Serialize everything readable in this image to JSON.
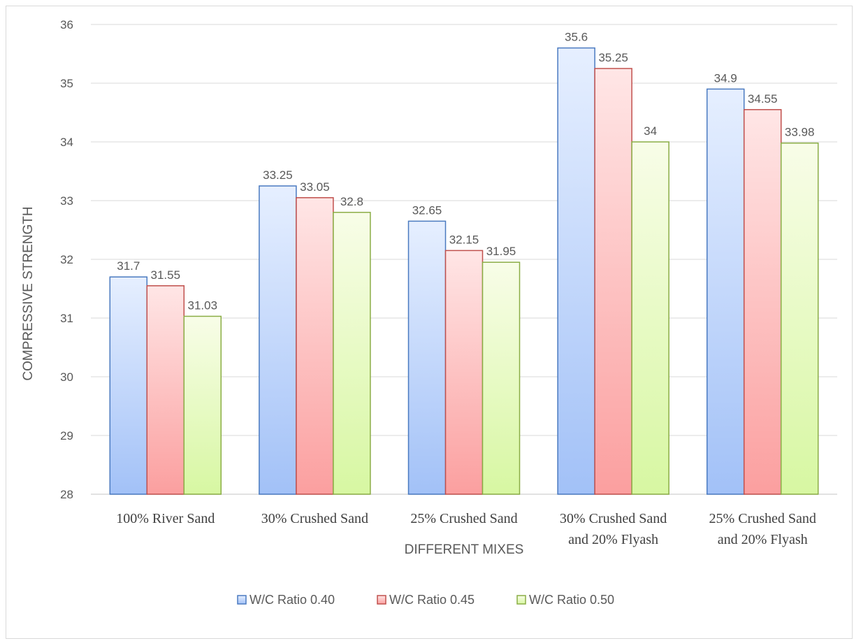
{
  "chart_data": {
    "type": "bar",
    "title": "",
    "xlabel": "DIFFERENT MIXES",
    "ylabel": "COMPRESSIVE STRENGTH",
    "ylim": [
      28,
      36
    ],
    "yticks": [
      "28",
      "29",
      "30",
      "31",
      "32",
      "33",
      "34",
      "35",
      "36"
    ],
    "grid": true,
    "legend_position": "bottom",
    "categories": [
      [
        "100% River Sand"
      ],
      [
        "30% Crushed Sand"
      ],
      [
        "25% Crushed Sand"
      ],
      [
        "30% Crushed Sand",
        "and 20% Flyash"
      ],
      [
        "25% Crushed Sand",
        "and 20% Flyash"
      ]
    ],
    "series": [
      {
        "name": "W/C Ratio 0.40",
        "values": [
          31.7,
          33.25,
          32.65,
          35.6,
          34.9
        ],
        "labels": [
          "31.7",
          "33.25",
          "32.65",
          "35.6",
          "34.9"
        ],
        "color_top": "#e6efff",
        "color_bottom": "#a2c1f7",
        "stroke": "#4a7ac0"
      },
      {
        "name": "W/C Ratio 0.45",
        "values": [
          31.55,
          33.05,
          32.15,
          35.25,
          34.55
        ],
        "labels": [
          "31.55",
          "33.05",
          "32.15",
          "35.25",
          "34.55"
        ],
        "color_top": "#ffe6e6",
        "color_bottom": "#fb9f9f",
        "stroke": "#c0504d"
      },
      {
        "name": "W/C Ratio 0.50",
        "values": [
          31.03,
          32.8,
          31.95,
          34,
          33.98
        ],
        "labels": [
          "31.03",
          "32.8",
          "31.95",
          "34",
          "33.98"
        ],
        "color_top": "#f8fde8",
        "color_bottom": "#d7f7a2",
        "stroke": "#8aad45"
      }
    ]
  }
}
